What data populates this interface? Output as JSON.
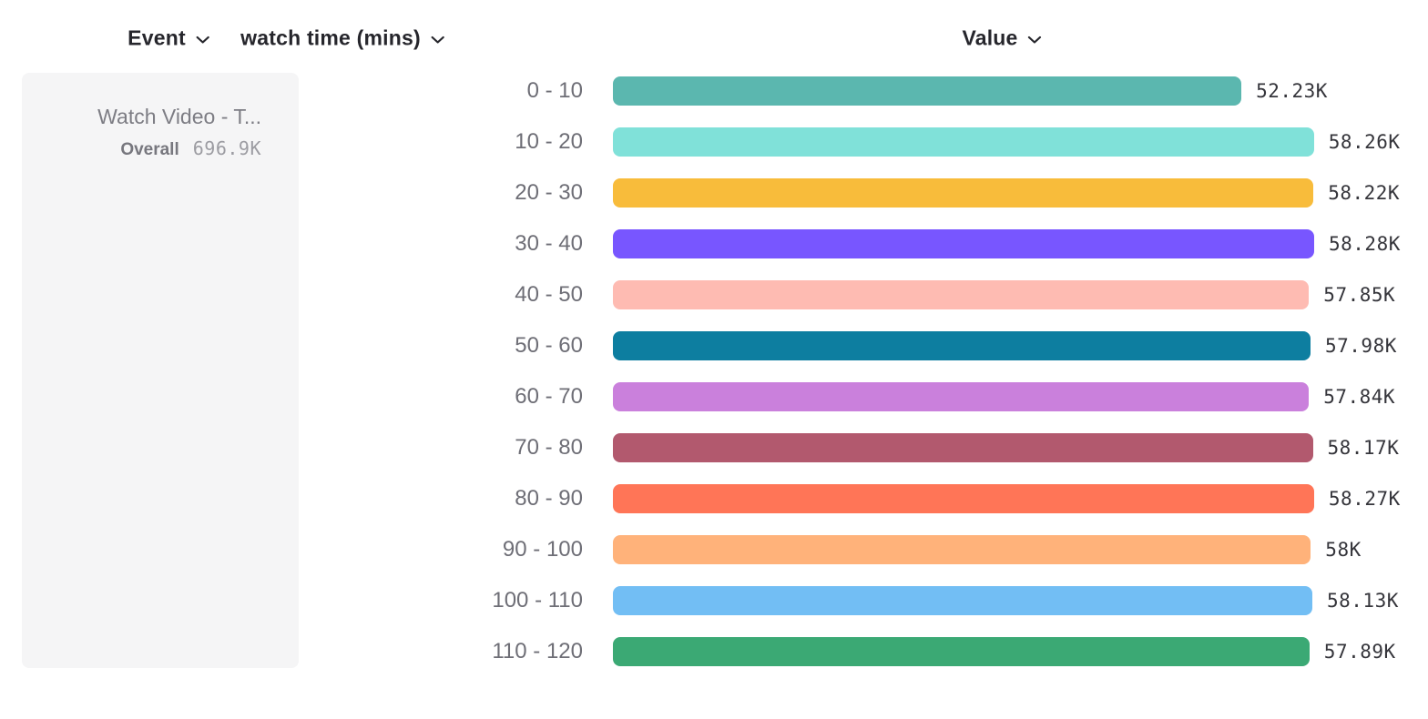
{
  "header": {
    "columns": [
      {
        "label": "Event"
      },
      {
        "label": "watch time (mins)"
      },
      {
        "label": "Value"
      }
    ],
    "dropdown_icon": "chevron-down-icon",
    "text_color": "#26262c"
  },
  "event_card": {
    "title": "Watch Video - T...",
    "overall_label": "Overall",
    "overall_value": "696.9K",
    "background_color": "#f5f5f6"
  },
  "chart_data": {
    "type": "bar",
    "orientation": "horizontal",
    "title": "",
    "xlabel": "",
    "ylabel": "watch time (mins)",
    "xlim": [
      0,
      58280
    ],
    "grid": false,
    "legend": false,
    "categories": [
      "0 - 10",
      "10 - 20",
      "20 - 30",
      "30 - 40",
      "40 - 50",
      "50 - 60",
      "60 - 70",
      "70 - 80",
      "80 - 90",
      "90 - 100",
      "100 - 110",
      "110 - 120"
    ],
    "values": [
      52230,
      58260,
      58220,
      58280,
      57850,
      57980,
      57840,
      58170,
      58270,
      58000,
      58130,
      57890
    ],
    "value_labels": [
      "52.23K",
      "58.26K",
      "58.22K",
      "58.28K",
      "57.85K",
      "57.98K",
      "57.84K",
      "58.17K",
      "58.27K",
      "58K",
      "58.13K",
      "57.89K"
    ],
    "bar_colors": [
      "#5BB7AF",
      "#80E1D9",
      "#F8BC3B",
      "#7856FF",
      "#FEBBB2",
      "#0D7EA0",
      "#CA80DC",
      "#B2596E",
      "#FF7557",
      "#FFB27A",
      "#72BEF4",
      "#3BA974"
    ],
    "category_label_color": "#6e6e76",
    "value_label_color": "#35353b"
  }
}
